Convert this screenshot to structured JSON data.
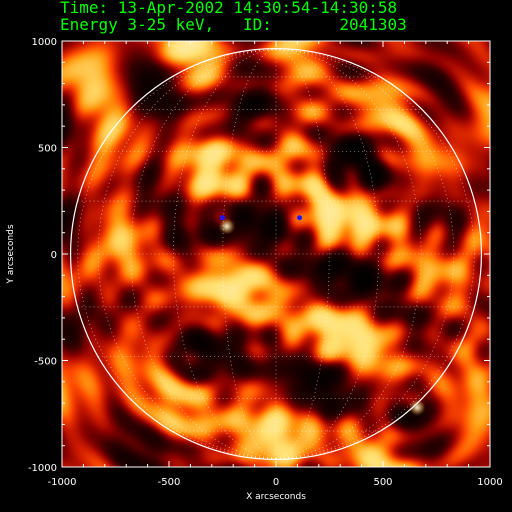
{
  "header": {
    "line1": "Time: 13-Apr-2002 14:30:54-14:30:58",
    "line2": "Energy 3-25 keV,   ID:       2041303"
  },
  "colors": {
    "header_text": "#00ff00",
    "background": "#000000",
    "colormap": [
      "#000000",
      "#3a0000",
      "#8b0000",
      "#cc1a00",
      "#ff4a00",
      "#ff9a10",
      "#ffe070",
      "#ffffff"
    ],
    "limb": "#ffffff",
    "grid": "#ffffff",
    "negative_spot": "#1818ff"
  },
  "axes": {
    "xlabel": "X arcseconds",
    "ylabel": "Y arcseconds",
    "xlim": [
      -1000,
      1000
    ],
    "ylim": [
      -1000,
      1000
    ],
    "xticks": [
      "-1000",
      "-500",
      "0",
      "500",
      "1000"
    ],
    "yticks": [
      "-1000",
      "-500",
      "0",
      "500",
      "1000"
    ]
  },
  "image": {
    "type": "heatmap",
    "solar_limb_radius_arcsec": 960,
    "heliographic_grid": "dotted",
    "bright_sources": [
      {
        "x": -230,
        "y": 130,
        "label": ""
      },
      {
        "x": 660,
        "y": -720,
        "label": ""
      }
    ],
    "negative_sources": [
      {
        "x": -250,
        "y": 170
      },
      {
        "x": 110,
        "y": 170
      }
    ]
  }
}
